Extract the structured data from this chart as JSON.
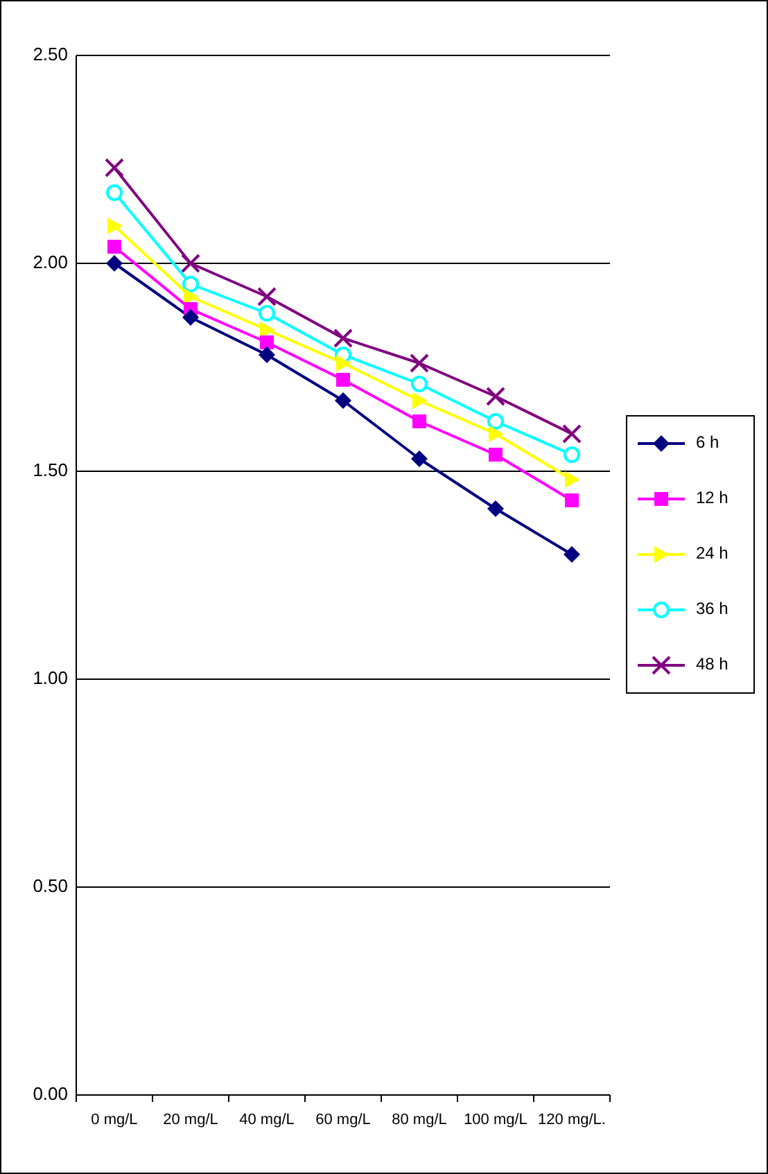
{
  "chart_data": {
    "type": "line",
    "categories": [
      "0 mg/L",
      "20 mg/L",
      "40 mg/L",
      "60 mg/L",
      "80 mg/L",
      "100 mg/L",
      "120 mg/L."
    ],
    "ylim": [
      0,
      2.5
    ],
    "yticks": [
      {
        "value": 0,
        "label": "0.00"
      },
      {
        "value": 0.5,
        "label": "0.50"
      },
      {
        "value": 1,
        "label": "1.00"
      },
      {
        "value": 1.5,
        "label": "1.50"
      },
      {
        "value": 2,
        "label": "2.00"
      },
      {
        "value": 2.5,
        "label": "2.50"
      }
    ],
    "grid": "y",
    "legend": "right",
    "line_style": "solid",
    "series": [
      {
        "name": "6 h",
        "color": "#000080",
        "marker": "diamond",
        "values": [
          2.0,
          1.87,
          1.78,
          1.67,
          1.53,
          1.41,
          1.3
        ]
      },
      {
        "name": "12 h",
        "color": "#ff00ff",
        "marker": "square",
        "values": [
          2.04,
          1.89,
          1.81,
          1.72,
          1.62,
          1.54,
          1.43
        ]
      },
      {
        "name": "24 h",
        "color": "#ffff00",
        "marker": "triangle",
        "values": [
          2.09,
          1.92,
          1.84,
          1.76,
          1.67,
          1.59,
          1.48
        ]
      },
      {
        "name": "36 h",
        "color": "#00ffff",
        "marker": "circle",
        "values": [
          2.17,
          1.95,
          1.88,
          1.78,
          1.71,
          1.62,
          1.54
        ]
      },
      {
        "name": "48 h",
        "color": "#800080",
        "marker": "cross",
        "values": [
          2.23,
          2.0,
          1.92,
          1.82,
          1.76,
          1.68,
          1.59
        ]
      }
    ]
  }
}
